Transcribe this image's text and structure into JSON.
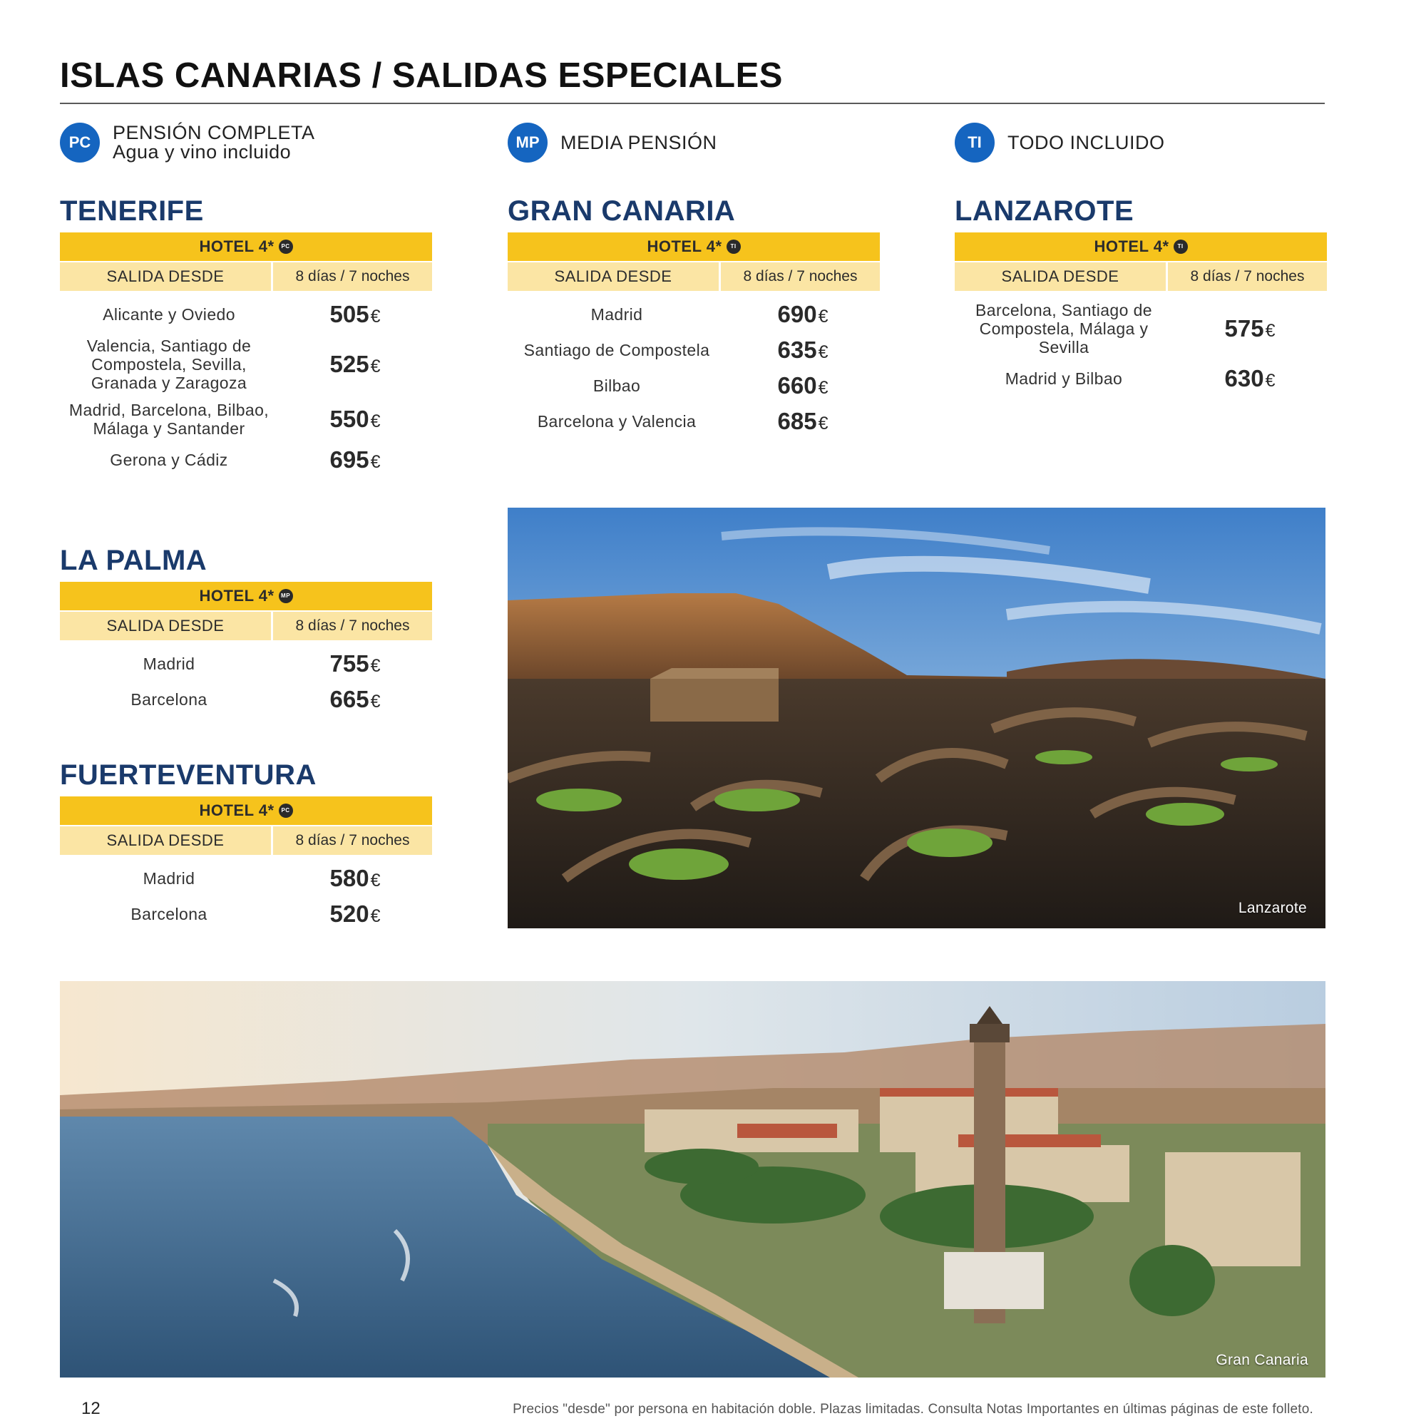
{
  "title": "ISLAS CANARIAS / SALIDAS ESPECIALES",
  "legend": [
    {
      "code": "PC",
      "line1": "PENSIÓN COMPLETA",
      "line2": "Agua y vino incluido"
    },
    {
      "code": "MP",
      "line1": "MEDIA PENSIÓN",
      "line2": ""
    },
    {
      "code": "TI",
      "line1": "TODO INCLUIDO",
      "line2": ""
    }
  ],
  "table_header": {
    "departure": "SALIDA DESDE",
    "duration": "8 días / 7 noches"
  },
  "currency": "€",
  "islands": {
    "tenerife": {
      "name": "TENERIFE",
      "hotel": "HOTEL 4*",
      "board": "PC",
      "rows": [
        {
          "city": "Alicante y Oviedo",
          "price": "505"
        },
        {
          "city": "Valencia, Santiago de Compostela, Sevilla, Granada y Zaragoza",
          "price": "525"
        },
        {
          "city": "Madrid, Barcelona, Bilbao, Málaga y Santander",
          "price": "550"
        },
        {
          "city": "Gerona y Cádiz",
          "price": "695"
        }
      ]
    },
    "gran_canaria": {
      "name": "GRAN CANARIA",
      "hotel": "HOTEL 4*",
      "board": "TI",
      "rows": [
        {
          "city": "Madrid",
          "price": "690"
        },
        {
          "city": "Santiago de Compostela",
          "price": "635"
        },
        {
          "city": "Bilbao",
          "price": "660"
        },
        {
          "city": "Barcelona y Valencia",
          "price": "685"
        }
      ]
    },
    "lanzarote": {
      "name": "LANZAROTE",
      "hotel": "HOTEL 4*",
      "board": "TI",
      "rows": [
        {
          "city": "Barcelona, Santiago de Compostela, Málaga y Sevilla",
          "price": "575"
        },
        {
          "city": "Madrid y Bilbao",
          "price": "630"
        }
      ]
    },
    "la_palma": {
      "name": "LA PALMA",
      "hotel": "HOTEL 4*",
      "board": "MP",
      "rows": [
        {
          "city": "Madrid",
          "price": "755"
        },
        {
          "city": "Barcelona",
          "price": "665"
        }
      ]
    },
    "fuerteventura": {
      "name": "FUERTEVENTURA",
      "hotel": "HOTEL 4*",
      "board": "PC",
      "rows": [
        {
          "city": "Madrid",
          "price": "580"
        },
        {
          "city": "Barcelona",
          "price": "520"
        }
      ]
    }
  },
  "photos": {
    "lanzarote_caption": "Lanzarote",
    "gran_canaria_caption": "Gran Canaria"
  },
  "page_number": "12",
  "footnote": "Precios \"desde\" por persona en habitación doble. Plazas limitadas. Consulta Notas Importantes en últimas páginas de este folleto.",
  "colors": {
    "accent": "#1565c0",
    "heading": "#1a3a6b",
    "hotel_bar": "#f6c31c",
    "sub_head": "#fbe5a4"
  }
}
